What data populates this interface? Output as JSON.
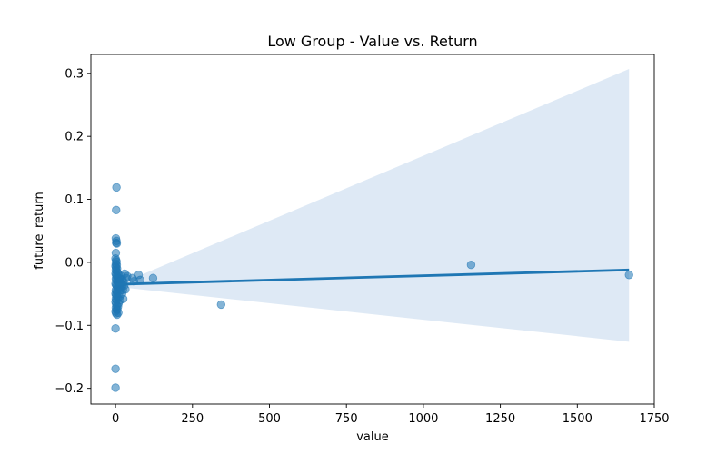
{
  "chart_data": {
    "type": "scatter",
    "title": "Low Group - Value vs. Return",
    "xlabel": "value",
    "ylabel": "future_return",
    "xlim": [
      -80,
      1750
    ],
    "ylim": [
      -0.225,
      0.33
    ],
    "xticks": [
      0,
      250,
      500,
      750,
      1000,
      1250,
      1500,
      1750
    ],
    "xtick_labels": [
      "0",
      "250",
      "500",
      "750",
      "1000",
      "1250",
      "1500",
      "1750"
    ],
    "yticks": [
      -0.2,
      -0.1,
      0.0,
      0.1,
      0.2,
      0.3
    ],
    "ytick_labels": [
      "−0.2",
      "−0.1",
      "0.0",
      "0.1",
      "0.2",
      "0.3"
    ],
    "grid": false,
    "point_color": "#1f77b4",
    "band_color": "#dce8f4",
    "line_color": "#1f77b4",
    "regression": {
      "x_start": 0,
      "x_end": 1668,
      "y_start": -0.035,
      "y_end": -0.012,
      "ci_upper": [
        [
          25,
          -0.032
        ],
        [
          1668,
          0.307
        ]
      ],
      "ci_lower": [
        [
          25,
          -0.04
        ],
        [
          1668,
          -0.126
        ]
      ]
    },
    "points": [
      [
        3,
        0.119
      ],
      [
        2,
        0.083
      ],
      [
        1,
        0.038
      ],
      [
        3,
        0.034
      ],
      [
        2,
        0.031
      ],
      [
        4,
        0.03
      ],
      [
        1,
        0.015
      ],
      [
        0,
        0.006
      ],
      [
        2,
        0.003
      ],
      [
        3,
        0.001
      ],
      [
        1,
        -0.002
      ],
      [
        4,
        -0.004
      ],
      [
        0,
        -0.006
      ],
      [
        2,
        -0.008
      ],
      [
        5,
        -0.01
      ],
      [
        1,
        -0.012
      ],
      [
        3,
        -0.014
      ],
      [
        6,
        -0.016
      ],
      [
        0,
        -0.018
      ],
      [
        2,
        -0.02
      ],
      [
        4,
        -0.022
      ],
      [
        7,
        -0.024
      ],
      [
        1,
        -0.026
      ],
      [
        3,
        -0.028
      ],
      [
        5,
        -0.03
      ],
      [
        8,
        -0.032
      ],
      [
        0,
        -0.034
      ],
      [
        2,
        -0.036
      ],
      [
        4,
        -0.038
      ],
      [
        6,
        -0.04
      ],
      [
        9,
        -0.042
      ],
      [
        1,
        -0.044
      ],
      [
        3,
        -0.046
      ],
      [
        5,
        -0.048
      ],
      [
        0,
        -0.05
      ],
      [
        2,
        -0.052
      ],
      [
        4,
        -0.054
      ],
      [
        7,
        -0.056
      ],
      [
        1,
        -0.058
      ],
      [
        3,
        -0.06
      ],
      [
        0,
        -0.063
      ],
      [
        2,
        -0.066
      ],
      [
        4,
        -0.069
      ],
      [
        1,
        -0.072
      ],
      [
        3,
        -0.075
      ],
      [
        0,
        -0.078
      ],
      [
        2,
        -0.081
      ],
      [
        5,
        -0.083
      ],
      [
        10,
        -0.02
      ],
      [
        12,
        -0.025
      ],
      [
        11,
        -0.03
      ],
      [
        13,
        -0.035
      ],
      [
        14,
        -0.04
      ],
      [
        15,
        -0.045
      ],
      [
        16,
        -0.028
      ],
      [
        18,
        -0.033
      ],
      [
        17,
        -0.038
      ],
      [
        20,
        -0.022
      ],
      [
        19,
        -0.042
      ],
      [
        21,
        -0.05
      ],
      [
        22,
        -0.027
      ],
      [
        23,
        -0.036
      ],
      [
        24,
        -0.044
      ],
      [
        12,
        -0.055
      ],
      [
        15,
        -0.06
      ],
      [
        10,
        -0.065
      ],
      [
        26,
        -0.031
      ],
      [
        28,
        -0.037
      ],
      [
        30,
        -0.018
      ],
      [
        32,
        -0.043
      ],
      [
        35,
        -0.025
      ],
      [
        38,
        -0.022
      ],
      [
        25,
        -0.058
      ],
      [
        8,
        -0.07
      ],
      [
        6,
        -0.075
      ],
      [
        9,
        -0.08
      ],
      [
        55,
        -0.025
      ],
      [
        60,
        -0.03
      ],
      [
        75,
        -0.02
      ],
      [
        80,
        -0.028
      ],
      [
        122,
        -0.025
      ],
      [
        343,
        -0.067
      ],
      [
        1155,
        -0.004
      ],
      [
        1668,
        -0.02
      ],
      [
        0,
        -0.105
      ],
      [
        0,
        -0.169
      ],
      [
        0,
        -0.199
      ]
    ]
  }
}
